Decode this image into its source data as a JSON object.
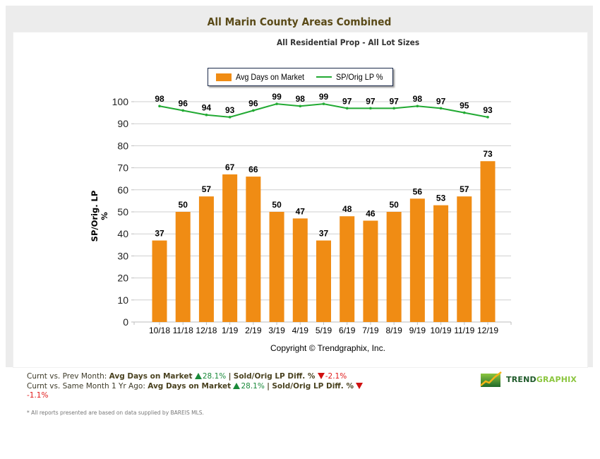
{
  "header": {
    "title": "All Marin County Areas Combined",
    "subtitle": "All Residential Prop - All Lot Sizes"
  },
  "legend": {
    "items": [
      {
        "label": "Avg Days on Market",
        "type": "bar",
        "color": "#f08c14"
      },
      {
        "label": "SP/Orig LP %",
        "type": "line",
        "color": "#22aa33"
      }
    ]
  },
  "chart_data": {
    "type": "bar",
    "title": "All Marin County Areas Combined",
    "subtitle": "All Residential Prop - All Lot Sizes",
    "xlabel": "",
    "ylabel": "SP/Orig. LP %",
    "ylim": [
      0,
      100
    ],
    "yticks": [
      0,
      10,
      20,
      30,
      40,
      50,
      60,
      70,
      80,
      90,
      100
    ],
    "grid": true,
    "legend_position": "top-center",
    "categories": [
      "10/18",
      "11/18",
      "12/18",
      "1/19",
      "2/19",
      "3/19",
      "4/19",
      "5/19",
      "6/19",
      "7/19",
      "8/19",
      "9/19",
      "10/19",
      "11/19",
      "12/19"
    ],
    "series": [
      {
        "name": "Avg Days on Market",
        "type": "bar",
        "color": "#f08c14",
        "values": [
          37,
          50,
          57,
          67,
          66,
          50,
          47,
          37,
          48,
          46,
          50,
          56,
          53,
          57,
          73
        ]
      },
      {
        "name": "SP/Orig LP %",
        "type": "line",
        "color": "#22aa33",
        "values": [
          98,
          96,
          94,
          93,
          96,
          99,
          98,
          99,
          97,
          97,
          97,
          98,
          97,
          95,
          93
        ]
      }
    ],
    "annotations": [
      "Copyright © Trendgraphix, Inc."
    ]
  },
  "copyright": "Copyright © Trendgraphix, Inc.",
  "summary": {
    "row1": {
      "prefix": "Curnt vs. Prev Month:",
      "metric1": "Avg Days on Market",
      "metric1_value": "28.1%",
      "metric1_dir": "up",
      "sep": "|",
      "metric2": "Sold/Orig LP Diff. %",
      "metric2_value": "-2.1%",
      "metric2_dir": "down"
    },
    "row2": {
      "prefix": "Curnt vs. Same Month 1 Yr Ago:",
      "metric1": "Avg Days on Market",
      "metric1_value": "28.1%",
      "metric1_dir": "up",
      "sep": "|",
      "metric2": "Sold/Orig LP Diff. %",
      "metric2_value": "-1.1%",
      "metric2_dir": "down"
    },
    "note": "* All reports presented are based on data supplied by BAREIS MLS."
  },
  "logo": {
    "text_part1": "TREND",
    "text_part2": "GRAPHIX"
  }
}
